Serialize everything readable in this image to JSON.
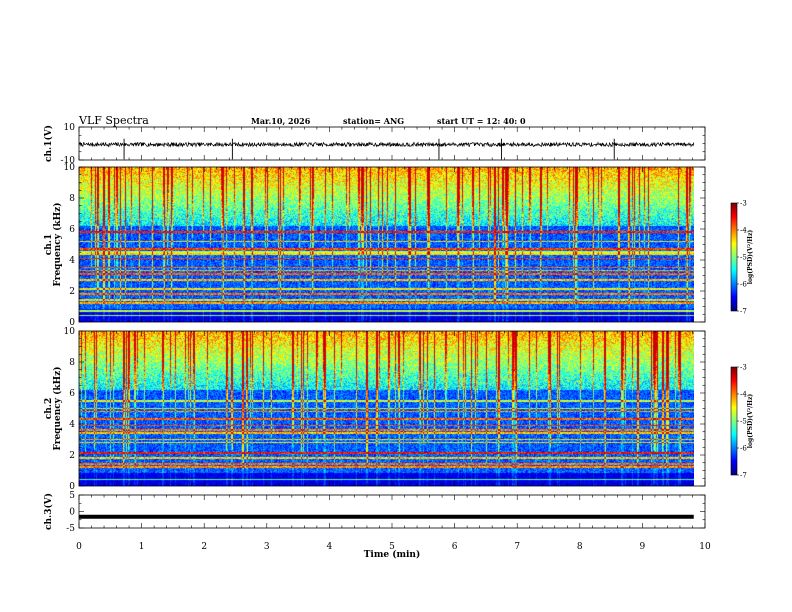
{
  "header": {
    "title": "VLF Spectra",
    "date": "Mar.10, 2026",
    "station": "station= ANG",
    "start": "start  UT =   12: 40: 0"
  },
  "chart_data": [
    {
      "type": "line",
      "name": "ch1-waveform",
      "ylabel": "ch.1(V)",
      "ylim": [
        -10,
        10
      ],
      "yticks": [
        "10",
        "-10"
      ],
      "baseline": -0.6,
      "noise_amplitude": 1.2,
      "spikes_x_min": [
        0.72,
        2.45,
        5.75,
        6.75,
        8.55
      ]
    },
    {
      "type": "heatmap",
      "name": "ch1-spectrogram",
      "ylabel": [
        "ch.1",
        "Frequency  (kHz)"
      ],
      "ylim": [
        0,
        10
      ],
      "yticks": [
        "0",
        "2",
        "4",
        "6",
        "8",
        "10"
      ],
      "colorbar": {
        "label": "log(PSD)(V²/Hz)",
        "range": [
          -7,
          -3
        ],
        "ticks": [
          "-3",
          "-4",
          "-5",
          "-6",
          "-7"
        ]
      },
      "horizontal_lines_khz": [
        0.4,
        0.7,
        1.2,
        1.4,
        1.8,
        2.1,
        2.7,
        3.1,
        3.3,
        3.5,
        4.1,
        4.4,
        4.5,
        4.7,
        5.2,
        5.8
      ],
      "seed": 11
    },
    {
      "type": "heatmap",
      "name": "ch2-spectrogram",
      "ylabel": [
        "ch.2",
        "Frequency  (kHz)"
      ],
      "ylim": [
        0,
        10
      ],
      "yticks": [
        "0",
        "2",
        "4",
        "6",
        "8",
        "10"
      ],
      "colorbar": {
        "label": "log(PSD)(V²/Hz)",
        "range": [
          -7,
          -3
        ],
        "ticks": [
          "-3",
          "-4",
          "-5",
          "-6",
          "-7"
        ]
      },
      "horizontal_lines_khz": [
        0.4,
        1.2,
        1.4,
        1.8,
        2.1,
        2.8,
        3.0,
        3.4,
        3.6,
        3.9,
        4.3,
        4.8,
        5.0,
        5.5
      ],
      "seed": 29
    },
    {
      "type": "line",
      "name": "ch3-waveform",
      "ylabel": "ch.3(V)",
      "ylim": [
        -5,
        5
      ],
      "yticks": [
        "5",
        "0",
        "-5"
      ],
      "baseline": -1.6
    }
  ],
  "xaxis": {
    "label": "Time  (min)",
    "range": [
      0,
      10
    ],
    "data_end": 9.82,
    "ticks": [
      "0",
      "1",
      "2",
      "3",
      "4",
      "5",
      "6",
      "7",
      "8",
      "9",
      "10"
    ]
  }
}
